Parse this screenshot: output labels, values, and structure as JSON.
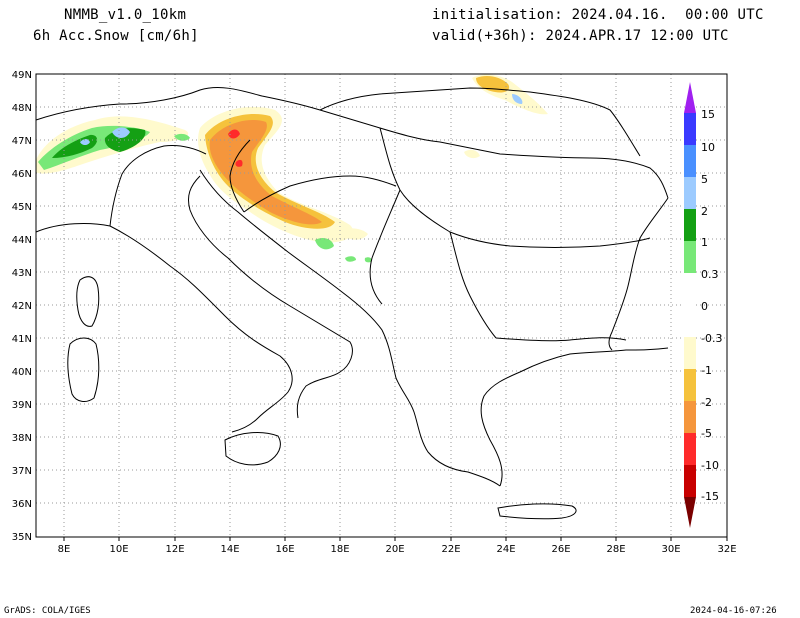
{
  "header": {
    "model": "NMMB_v1.0_10km",
    "field": "6h Acc.Snow [cm/6h]",
    "init": "initialisation: 2024.04.16.  00:00 UTC",
    "valid": "valid(+36h): 2024.APR.17 12:00 UTC"
  },
  "footer": {
    "credit": "GrADS: COLA/IGES",
    "timestamp": "2024-04-16-07:26"
  },
  "axes": {
    "lon_labels": [
      "8E",
      "10E",
      "12E",
      "14E",
      "16E",
      "18E",
      "20E",
      "22E",
      "24E",
      "26E",
      "28E",
      "30E",
      "32E"
    ],
    "lat_labels": [
      "49N",
      "48N",
      "47N",
      "46N",
      "45N",
      "44N",
      "43N",
      "42N",
      "41N",
      "40N",
      "39N",
      "38N",
      "37N",
      "36N",
      "35N"
    ]
  },
  "colorbar": {
    "labels": [
      "15",
      "10",
      "5",
      "2",
      "1",
      "0.3",
      "0",
      "-0.3",
      "-1",
      "-2",
      "-5",
      "-10",
      "-15"
    ],
    "colors": [
      "#a020f0",
      "#3a3aff",
      "#4a90ff",
      "#9ccbff",
      "#14a014",
      "#78e878",
      "#ffffff",
      "#fffacd",
      "#f5c23c",
      "#f5963c",
      "#ff2a2a",
      "#c80000",
      "#7a0000"
    ]
  }
}
